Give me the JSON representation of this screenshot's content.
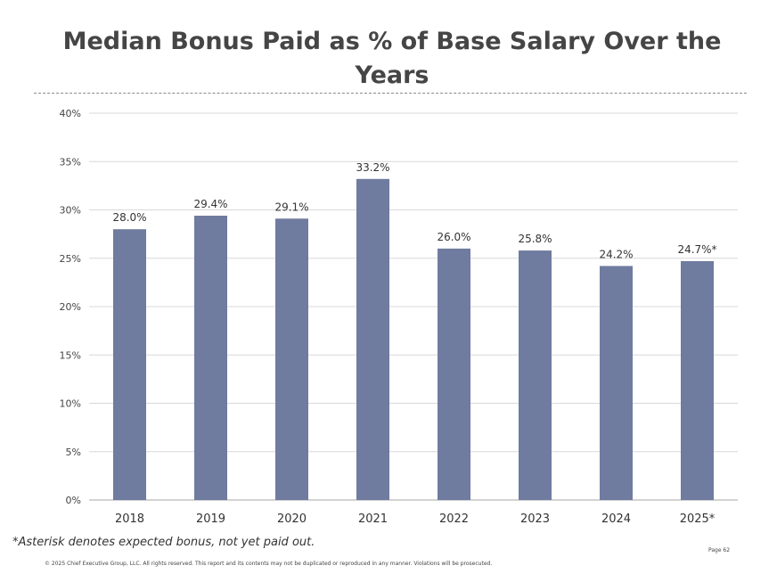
{
  "colors": {
    "bar": "#707ba0",
    "grid": "#d9d9d9",
    "axis": "#a6a6a6"
  },
  "chart_data": {
    "type": "bar",
    "title": "Median Bonus Paid as % of Base Salary Over the Years",
    "categories": [
      "2018",
      "2019",
      "2020",
      "2021",
      "2022",
      "2023",
      "2024",
      "2025*"
    ],
    "values": [
      28.0,
      29.4,
      29.1,
      33.2,
      26.0,
      25.8,
      24.2,
      24.7
    ],
    "data_labels": [
      "28.0%",
      "29.4%",
      "29.1%",
      "33.2%",
      "26.0%",
      "25.8%",
      "24.2%",
      "24.7%*"
    ],
    "yticks": [
      0,
      5,
      10,
      15,
      20,
      25,
      30,
      35,
      40
    ],
    "ytick_labels": [
      "0%",
      "5%",
      "10%",
      "15%",
      "20%",
      "25%",
      "30%",
      "35%",
      "40%"
    ],
    "ylim": [
      0,
      40
    ],
    "grid": true,
    "legend": "none"
  },
  "footnote": "*Asterisk denotes expected bonus, not yet paid out.",
  "copyright": "© 2025 Chief Executive Group, LLC. All rights reserved. This report and its contents may not be duplicated or reproduced in any manner. Violations will be prosecuted.",
  "page": "Page 62"
}
